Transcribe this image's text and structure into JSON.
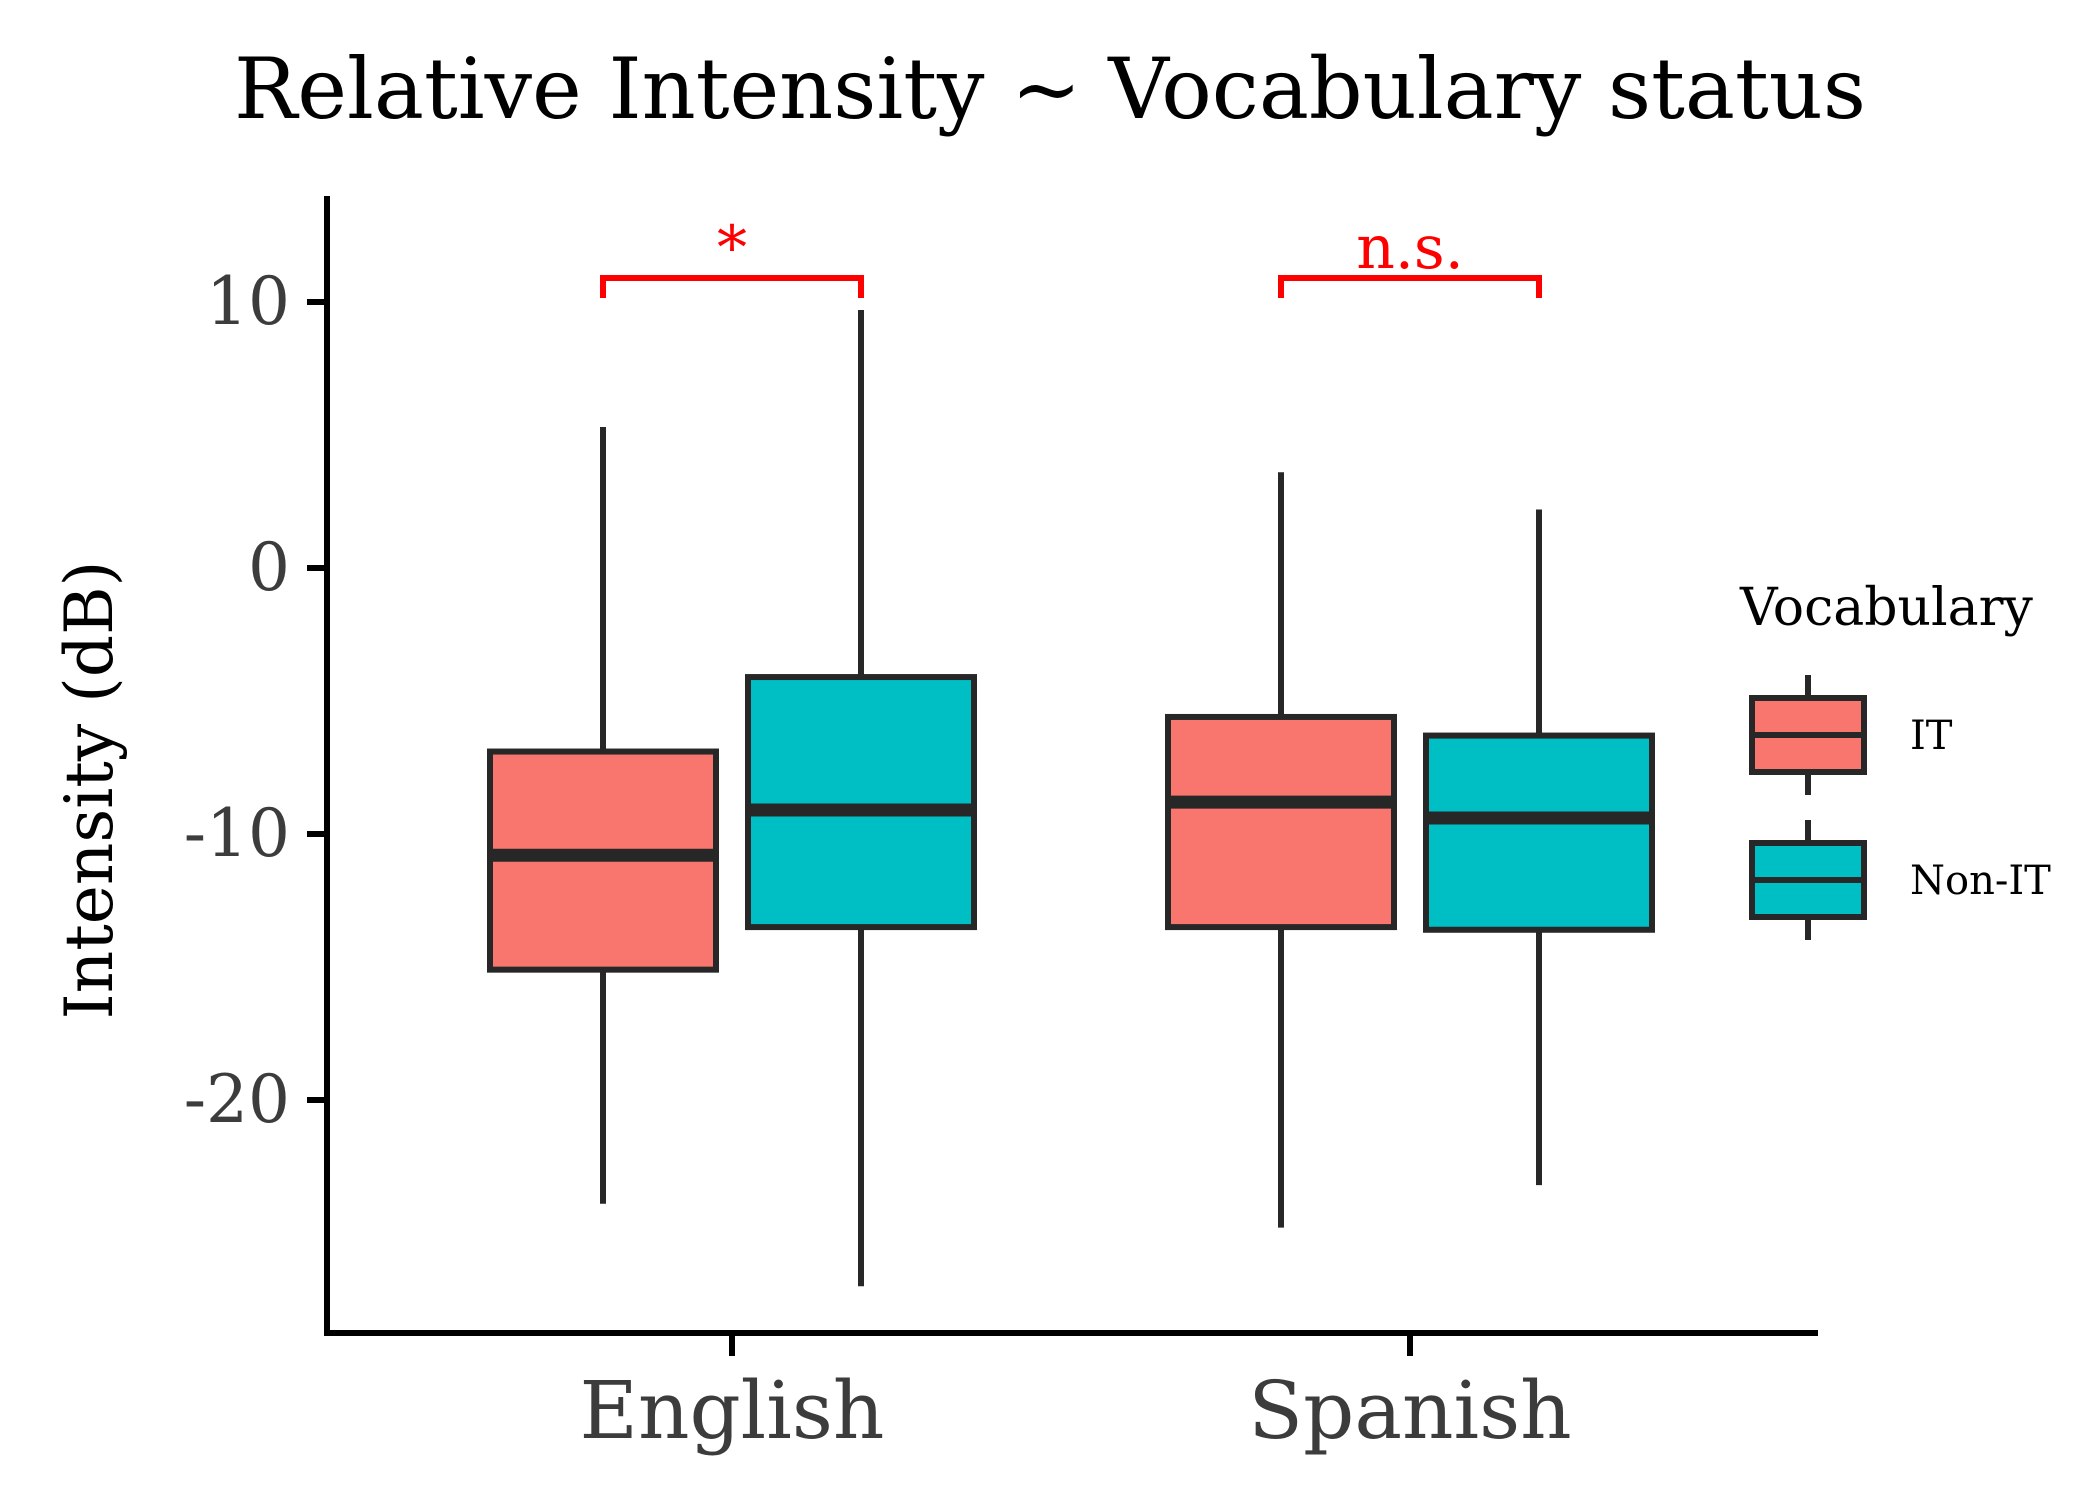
{
  "chart_data": {
    "type": "boxplot",
    "title": "Relative Intensity ~ Vocabulary status",
    "xlabel": "",
    "ylabel": "Intensity (dB)",
    "ylim": [
      -28.5,
      14
    ],
    "yticks": [
      10,
      0,
      -10,
      -20
    ],
    "categories": [
      "English",
      "Spanish"
    ],
    "legend": {
      "title": "Vocabulary",
      "position": "right",
      "items": [
        {
          "label": "IT",
          "color": "#F8766D"
        },
        {
          "label": "Non-IT",
          "color": "#00BFC4"
        }
      ]
    },
    "series": [
      {
        "name": "IT",
        "color": "#F8766D",
        "boxes": [
          {
            "category": "English",
            "min": -23.9,
            "q1": -15.1,
            "median": -10.8,
            "q3": -6.9,
            "max": 5.3
          },
          {
            "category": "Spanish",
            "min": -24.8,
            "q1": -13.5,
            "median": -8.8,
            "q3": -5.6,
            "max": 3.6
          }
        ]
      },
      {
        "name": "Non-IT",
        "color": "#00BFC4",
        "boxes": [
          {
            "category": "English",
            "min": -27.0,
            "q1": -13.5,
            "median": -9.1,
            "q3": -4.1,
            "max": 9.7
          },
          {
            "category": "Spanish",
            "min": -23.2,
            "q1": -13.6,
            "median": -9.4,
            "q3": -6.3,
            "max": 2.2
          }
        ]
      }
    ],
    "annotations": [
      {
        "category": "English",
        "label": "*",
        "y": 10.9,
        "color": "#FF0000"
      },
      {
        "category": "Spanish",
        "label": "n.s.",
        "y": 10.9,
        "color": "#FF0000"
      }
    ],
    "grid": false
  }
}
